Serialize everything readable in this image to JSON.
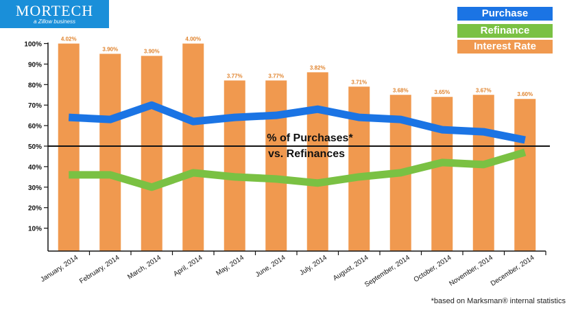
{
  "logo": {
    "name": "MORTECH",
    "tagline": "a Zillow business"
  },
  "colors": {
    "purchase": "#1b74e4",
    "refinance": "#7ac143",
    "interest": "#f0994f",
    "rate_label": "#e0842f",
    "logo_bg": "#1a8fd9"
  },
  "legend": [
    {
      "label": "Purchase",
      "color": "#1b74e4"
    },
    {
      "label": "Refinance",
      "color": "#7ac143"
    },
    {
      "label": "Interest Rate",
      "color": "#f0994f"
    }
  ],
  "footnote": "*based on Marksman® internal statistics",
  "chart_data": {
    "type": "bar",
    "title": "% of Purchases* vs. Refinances",
    "title_line1": "% of Purchases*",
    "title_line2": "vs. Refinances",
    "categories": [
      "January, 2014",
      "February, 2014",
      "March, 2014",
      "April, 2014",
      "May, 2014",
      "June, 2014",
      "July, 2014",
      "August, 2014",
      "September, 2014",
      "October, 2014",
      "November, 2014",
      "December, 2014"
    ],
    "y_ticks": [
      "10%",
      "20%",
      "30%",
      "40%",
      "50%",
      "60%",
      "70%",
      "80%",
      "90%",
      "100%"
    ],
    "ylim": [
      7,
      100
    ],
    "reference_line": 50,
    "grid": false,
    "series": [
      {
        "name": "Interest Rate",
        "kind": "bar",
        "values": [
          100,
          95,
          94,
          100,
          82,
          82,
          86,
          79,
          75,
          74,
          75,
          73
        ],
        "labels": [
          "4.02%",
          "3.90%",
          "3.90%",
          "4.00%",
          "3.77%",
          "3.77%",
          "3.82%",
          "3.71%",
          "3.68%",
          "3.65%",
          "3.67%",
          "3.60%"
        ]
      },
      {
        "name": "Purchase",
        "kind": "line",
        "values": [
          64,
          63,
          70,
          62,
          64,
          65,
          68,
          64,
          63,
          58,
          57,
          53
        ]
      },
      {
        "name": "Refinance",
        "kind": "line",
        "values": [
          36,
          36,
          30,
          37,
          35,
          34,
          32,
          35,
          37,
          42,
          41,
          47
        ]
      }
    ]
  }
}
